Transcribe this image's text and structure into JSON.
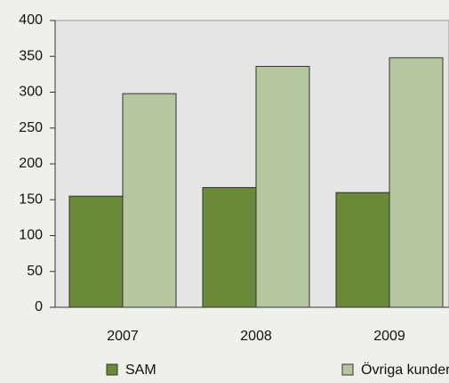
{
  "chart_data": {
    "type": "bar",
    "categories": [
      "2007",
      "2008",
      "2009"
    ],
    "series": [
      {
        "name": "SAM",
        "color": "#6a8a3a",
        "values": [
          155,
          167,
          160
        ]
      },
      {
        "name": "Övriga kunder",
        "color": "#b6c6a0",
        "values": [
          298,
          336,
          348
        ]
      }
    ],
    "ylim": [
      0,
      400
    ],
    "yticks": [
      0,
      50,
      100,
      150,
      200,
      250,
      300,
      350,
      400
    ],
    "grid": false,
    "legend": "bottom"
  }
}
